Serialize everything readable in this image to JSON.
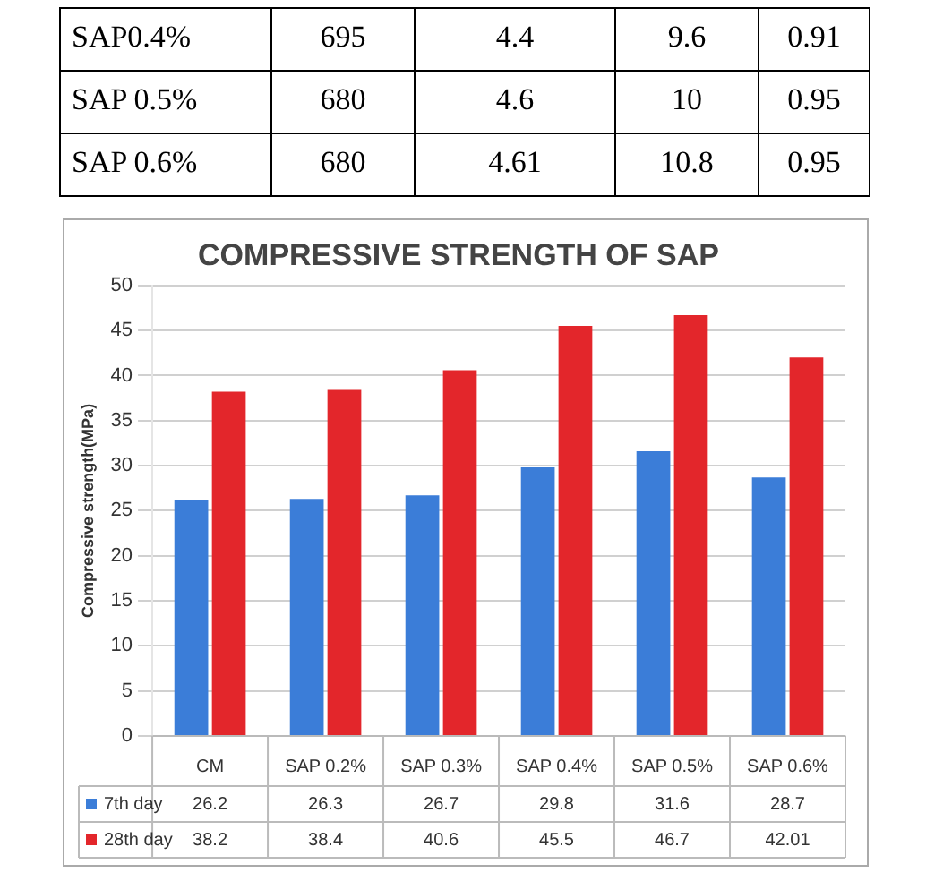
{
  "chart_data": [
    {
      "type": "other",
      "annotations": [
        "SAP0.4%",
        "695",
        "4.4",
        "9.6",
        "0.91",
        "SAP 0.5%",
        "680",
        "4.6",
        "10",
        "0.95",
        "SAP 0.6%",
        "680",
        "4.61",
        "10.8",
        "0.95"
      ]
    },
    {
      "type": "bar",
      "title": "COMPRESSIVE STRENGTH OF SAP",
      "ylabel": "Compressive strength(MPa)",
      "categories": [
        "CM",
        "SAP 0.2%",
        "SAP 0.3%",
        "SAP 0.4%",
        "SAP 0.5%",
        "SAP 0.6%"
      ],
      "series": [
        {
          "name": "7th day",
          "color": "#3b7dd8",
          "values": [
            26.2,
            26.3,
            26.7,
            29.8,
            31.6,
            28.7
          ]
        },
        {
          "name": "28th day",
          "color": "#e3262b",
          "values": [
            38.2,
            38.4,
            40.6,
            45.5,
            46.7,
            42.01
          ]
        }
      ],
      "ylim": [
        0,
        50
      ],
      "yticks": [
        0,
        5,
        10,
        15,
        20,
        25,
        30,
        35,
        40,
        45,
        50
      ],
      "grid": "y",
      "data_labels": true,
      "legend": "bottom"
    }
  ]
}
